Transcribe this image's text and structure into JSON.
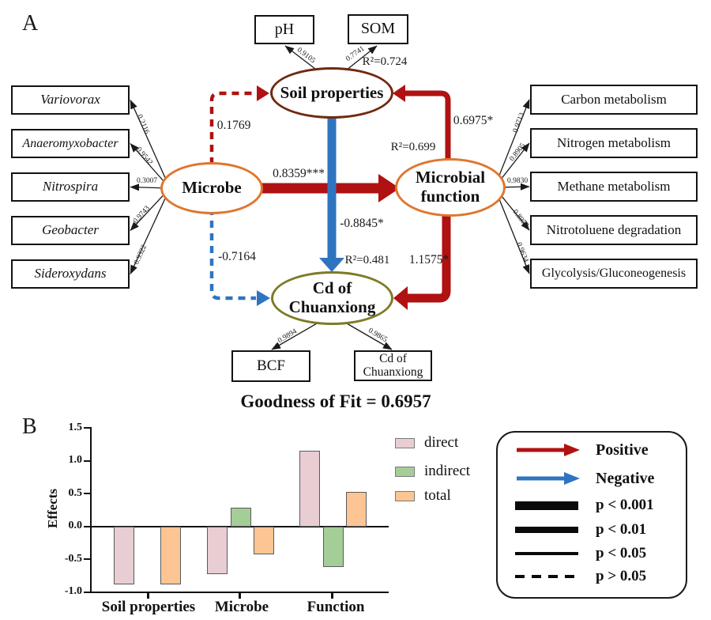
{
  "panel_a": {
    "label": "A",
    "goodness_of_fit": "Goodness of Fit = 0.6957",
    "nodes": {
      "soil_properties": {
        "label": "Soil properties",
        "r2": "R²=0.724"
      },
      "microbe": {
        "label": "Microbe"
      },
      "microbial_function": {
        "line1": "Microbial",
        "line2": "function",
        "r2": "R²=0.699"
      },
      "cd_of_chuanxiong": {
        "line1": "Cd of",
        "line2": "Chuanxiong",
        "r2": "R²=0.481"
      }
    },
    "paths": {
      "microbe_to_soil": "0.1769",
      "microbe_to_function": "0.8359***",
      "microbe_to_cd": "-0.7164",
      "function_to_soil": "0.6975*",
      "soil_to_cd": "-0.8845*",
      "function_to_cd": "1.1575*"
    },
    "indicators": {
      "top": [
        {
          "label": "pH",
          "loading": "0.9105"
        },
        {
          "label": "SOM",
          "loading": "0.7741"
        }
      ],
      "left": [
        {
          "label": "Variovorax",
          "loading": "0.2116"
        },
        {
          "label": "Anaeromyxobacter",
          "loading": "0.9542"
        },
        {
          "label": "Nitrospira",
          "loading": "0.3007"
        },
        {
          "label": "Geobacter",
          "loading": "0.9743"
        },
        {
          "label": "Sideroxydans",
          "loading": "0.9322"
        }
      ],
      "right": [
        {
          "label": "Carbon metabolism",
          "loading": "0.9713"
        },
        {
          "label": "Nitrogen metabolism",
          "loading": "0.8905"
        },
        {
          "label": "Methane metabolism",
          "loading": "0.9830"
        },
        {
          "label": "Nitrotoluene degradation",
          "loading": "0.8957"
        },
        {
          "label": "Glycolysis/Gluconeogenesis",
          "loading": "0.9634"
        }
      ],
      "bottom": [
        {
          "label": "BCF",
          "loading": "0.9894"
        },
        {
          "label": "Cd of Chuanxiong",
          "loading": "0.9865"
        }
      ]
    }
  },
  "panel_b": {
    "label": "B",
    "ytick_labels": [
      "1.5",
      "1.0",
      "0.5",
      "0.0",
      "-0.5",
      "-1.0"
    ]
  },
  "chart_data": {
    "type": "bar",
    "categories": [
      "Soil properties",
      "Microbe",
      "Function"
    ],
    "series": [
      {
        "name": "direct",
        "color": "#e8cdd3",
        "values": [
          -0.88,
          -0.72,
          1.16
        ]
      },
      {
        "name": "indirect",
        "color": "#a4cd97",
        "values": [
          null,
          0.29,
          -0.61
        ]
      },
      {
        "name": "total",
        "color": "#fcc593",
        "values": [
          -0.88,
          -0.42,
          0.53
        ]
      }
    ],
    "ylabel": "Effects",
    "ylim": [
      -1.0,
      1.5
    ],
    "yticks": [
      1.5,
      1.0,
      0.5,
      0.0,
      -0.5,
      -1.0
    ],
    "grid": false,
    "legend_position": "right"
  },
  "sig_legend": {
    "positive": "Positive",
    "negative": "Negative",
    "p001": "p < 0.001",
    "p01": "p < 0.01",
    "p05": "p < 0.05",
    "pgt05": "p > 0.05"
  },
  "colors": {
    "positive_arrow": "#b01111",
    "negative_arrow": "#2f74c0",
    "soil_outline": "#6f2a10",
    "microbe_outline": "#e0762d",
    "cd_outline": "#7e7a28",
    "line_black": "#1a1a1a"
  }
}
